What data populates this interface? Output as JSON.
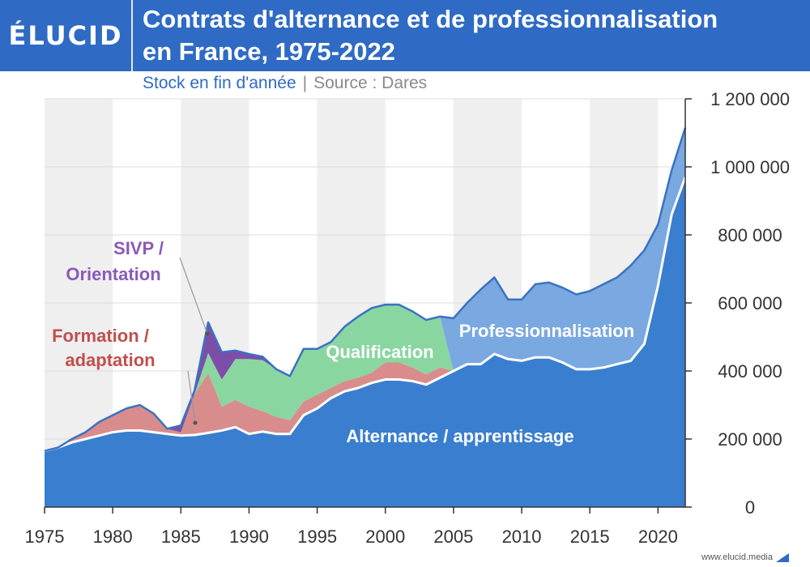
{
  "header": {
    "logo": "ÉLUCID",
    "title_line1": "Contrats d'alternance et de professionnalisation",
    "title_line2": "en France, 1975-2022",
    "subtitle": "Stock en fin d'année",
    "separator": "|",
    "source": "Source : Dares"
  },
  "footer": {
    "site": "www.elucid.media"
  },
  "colors": {
    "header": "#2f6bc4",
    "alternance": "#3a7fcf",
    "formation": "#d98c8c",
    "qualification": "#8ad6a0",
    "sivp": "#7c4ea8",
    "professionnalisation": "#7aa8e0",
    "outline": "#3a72c2",
    "label_formation": "#c0504d",
    "label_sivp": "#8a5bb8"
  },
  "chart_data": {
    "type": "area",
    "stacked": true,
    "x": [
      1975,
      1976,
      1977,
      1978,
      1979,
      1980,
      1981,
      1982,
      1983,
      1984,
      1985,
      1986,
      1987,
      1988,
      1989,
      1990,
      1991,
      1992,
      1993,
      1994,
      1995,
      1996,
      1997,
      1998,
      1999,
      2000,
      2001,
      2002,
      2003,
      2004,
      2005,
      2006,
      2007,
      2008,
      2009,
      2010,
      2011,
      2012,
      2013,
      2014,
      2015,
      2016,
      2017,
      2018,
      2019,
      2020,
      2021,
      2022
    ],
    "series": [
      {
        "name": "Alternance / apprentissage",
        "key": "alternance",
        "values": [
          165000,
          175000,
          190000,
          200000,
          210000,
          220000,
          225000,
          225000,
          220000,
          215000,
          210000,
          212000,
          218000,
          225000,
          235000,
          215000,
          222000,
          215000,
          215000,
          270000,
          290000,
          320000,
          340000,
          350000,
          365000,
          375000,
          375000,
          370000,
          360000,
          380000,
          400000,
          420000,
          420000,
          450000,
          435000,
          430000,
          440000,
          440000,
          425000,
          405000,
          405000,
          410000,
          420000,
          430000,
          480000,
          650000,
          860000,
          970000
        ]
      },
      {
        "name": "Formation / adaptation",
        "key": "formation",
        "values": [
          0,
          0,
          10000,
          20000,
          40000,
          50000,
          65000,
          75000,
          55000,
          15000,
          10000,
          120000,
          175000,
          70000,
          80000,
          80000,
          60000,
          50000,
          40000,
          40000,
          40000,
          30000,
          30000,
          30000,
          30000,
          50000,
          50000,
          40000,
          30000,
          30000,
          0,
          0,
          0,
          0,
          0,
          0,
          0,
          0,
          0,
          0,
          0,
          0,
          0,
          0,
          0,
          0,
          0,
          0
        ]
      },
      {
        "name": "Qualification",
        "key": "qualification",
        "values": [
          0,
          0,
          0,
          0,
          0,
          0,
          0,
          0,
          0,
          0,
          0,
          0,
          60000,
          80000,
          120000,
          140000,
          150000,
          140000,
          130000,
          155000,
          135000,
          135000,
          160000,
          180000,
          190000,
          170000,
          170000,
          165000,
          160000,
          150000,
          0,
          0,
          0,
          0,
          0,
          0,
          0,
          0,
          0,
          0,
          0,
          0,
          0,
          0,
          0,
          0,
          0,
          0
        ]
      },
      {
        "name": "SIVP / Orientation",
        "key": "sivp",
        "values": [
          0,
          0,
          0,
          0,
          0,
          0,
          0,
          0,
          0,
          0,
          20000,
          10000,
          90000,
          80000,
          25000,
          15000,
          10000,
          0,
          0,
          0,
          0,
          0,
          0,
          0,
          0,
          0,
          0,
          0,
          0,
          0,
          0,
          0,
          0,
          0,
          0,
          0,
          0,
          0,
          0,
          0,
          0,
          0,
          0,
          0,
          0,
          0,
          0,
          0
        ]
      },
      {
        "name": "Professionnalisation",
        "key": "professionnalisation",
        "values": [
          0,
          0,
          0,
          0,
          0,
          0,
          0,
          0,
          0,
          0,
          0,
          0,
          0,
          0,
          0,
          0,
          0,
          0,
          0,
          0,
          0,
          0,
          0,
          0,
          0,
          0,
          0,
          0,
          0,
          0,
          155000,
          180000,
          220000,
          225000,
          175000,
          180000,
          215000,
          220000,
          220000,
          220000,
          230000,
          245000,
          255000,
          280000,
          275000,
          180000,
          130000,
          145000
        ]
      }
    ],
    "series_labels": [
      "Alternance / apprentissage",
      "Formation /",
      "adaptation",
      "Qualification",
      "SIVP /",
      "Orientation",
      "Professionnalisation"
    ],
    "x_ticks": [
      1975,
      1980,
      1985,
      1990,
      1995,
      2000,
      2005,
      2010,
      2015,
      2020
    ],
    "x_tick_labels": [
      "1975",
      "1980",
      "1985",
      "1990",
      "1995",
      "2000",
      "2005",
      "2010",
      "2015",
      "2020"
    ],
    "y_ticks": [
      0,
      200000,
      400000,
      600000,
      800000,
      1000000,
      1200000
    ],
    "y_tick_labels": [
      "0",
      "200 000",
      "400 000",
      "600 000",
      "800 000",
      "1 000 000",
      "1 200 000"
    ],
    "xlim": [
      1975,
      2022
    ],
    "ylim": [
      0,
      1200000
    ],
    "y_axis_position": "right",
    "grid": "horizontal",
    "background_bands": "alternating by 5 years",
    "annotations": [
      {
        "text": "SIVP / Orientation",
        "points_to": {
          "x": 1987,
          "series": "SIVP / Orientation"
        }
      },
      {
        "text": "Formation / adaptation",
        "points_to": {
          "x": 1986,
          "series": "Formation / adaptation"
        }
      }
    ]
  }
}
